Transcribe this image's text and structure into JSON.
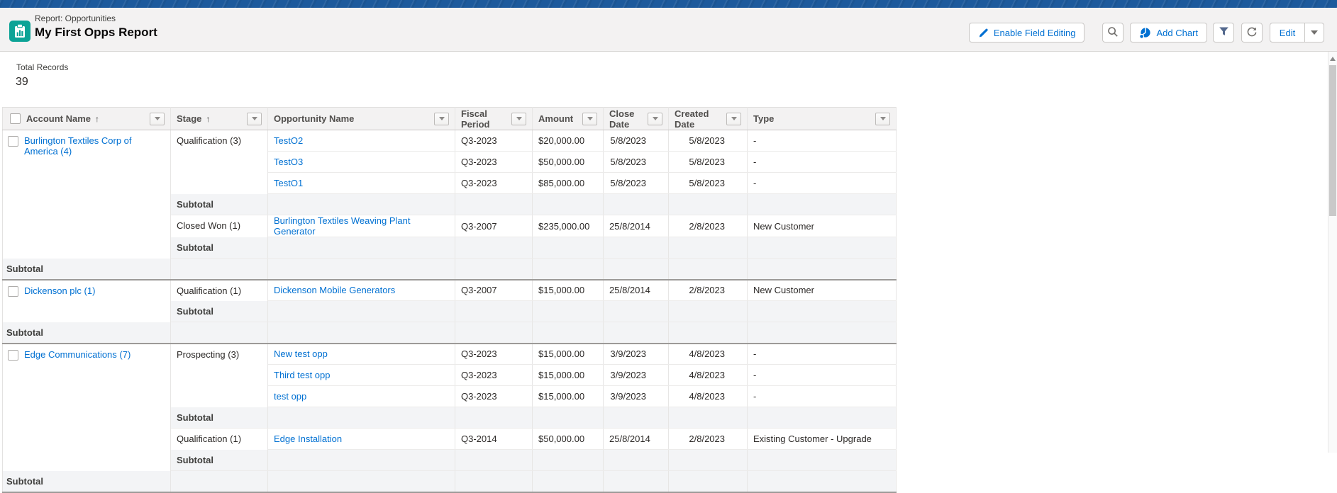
{
  "colors": {
    "topbar": "#1d5a9c",
    "link": "#0070d2",
    "report_icon_bg": "#0ca396",
    "header_bg": "#f3f2f2",
    "subtotal_bg": "#f3f4f6"
  },
  "header": {
    "eyebrow": "Report: Opportunities",
    "title": "My First Opps Report",
    "toolbar": {
      "enable_field_editing": "Enable Field Editing",
      "add_chart": "Add Chart",
      "edit": "Edit"
    },
    "icons": [
      "pencil-icon",
      "search-icon",
      "pie-chart-icon",
      "filter-icon",
      "refresh-icon",
      "caret-down-icon"
    ]
  },
  "summary": {
    "total_records_label": "Total Records",
    "total_records_value": "39"
  },
  "table": {
    "sort_indicator": "↑",
    "subtotal_label": "Subtotal",
    "columns": [
      {
        "label": "Account Name",
        "sorted": true
      },
      {
        "label": "Stage",
        "sorted": true
      },
      {
        "label": "Opportunity Name",
        "sorted": false
      },
      {
        "label": "Fiscal Period",
        "sorted": false
      },
      {
        "label": "Amount",
        "sorted": false
      },
      {
        "label": "Close Date",
        "sorted": false
      },
      {
        "label": "Created Date",
        "sorted": false
      },
      {
        "label": "Type",
        "sorted": false
      }
    ],
    "groups": [
      {
        "account": "Burlington Textiles Corp of America (4)",
        "stages": [
          {
            "stage": "Qualification (3)",
            "rows": [
              {
                "opportunity": "TestO2",
                "fiscal": "Q3-2023",
                "amount": "$20,000.00",
                "close": "5/8/2023",
                "created": "5/8/2023",
                "type": "-"
              },
              {
                "opportunity": "TestO3",
                "fiscal": "Q3-2023",
                "amount": "$50,000.00",
                "close": "5/8/2023",
                "created": "5/8/2023",
                "type": "-"
              },
              {
                "opportunity": "TestO1",
                "fiscal": "Q3-2023",
                "amount": "$85,000.00",
                "close": "5/8/2023",
                "created": "5/8/2023",
                "type": "-"
              }
            ]
          },
          {
            "stage": "Closed Won (1)",
            "rows": [
              {
                "opportunity": "Burlington Textiles Weaving Plant Generator",
                "fiscal": "Q3-2007",
                "amount": "$235,000.00",
                "close": "25/8/2014",
                "created": "2/8/2023",
                "type": "New Customer"
              }
            ]
          }
        ]
      },
      {
        "account": "Dickenson plc (1)",
        "stages": [
          {
            "stage": "Qualification (1)",
            "rows": [
              {
                "opportunity": "Dickenson Mobile Generators",
                "fiscal": "Q3-2007",
                "amount": "$15,000.00",
                "close": "25/8/2014",
                "created": "2/8/2023",
                "type": "New Customer"
              }
            ]
          }
        ]
      },
      {
        "account": "Edge Communications (7)",
        "stages": [
          {
            "stage": "Prospecting (3)",
            "rows": [
              {
                "opportunity": "New test opp",
                "fiscal": "Q3-2023",
                "amount": "$15,000.00",
                "close": "3/9/2023",
                "created": "4/8/2023",
                "type": "-"
              },
              {
                "opportunity": "Third test opp",
                "fiscal": "Q3-2023",
                "amount": "$15,000.00",
                "close": "3/9/2023",
                "created": "4/8/2023",
                "type": "-"
              },
              {
                "opportunity": "test opp",
                "fiscal": "Q3-2023",
                "amount": "$15,000.00",
                "close": "3/9/2023",
                "created": "4/8/2023",
                "type": "-"
              }
            ]
          },
          {
            "stage": "Qualification (1)",
            "rows": [
              {
                "opportunity": "Edge Installation",
                "fiscal": "Q3-2014",
                "amount": "$50,000.00",
                "close": "25/8/2014",
                "created": "2/8/2023",
                "type": "Existing Customer - Upgrade"
              }
            ]
          }
        ]
      }
    ]
  }
}
